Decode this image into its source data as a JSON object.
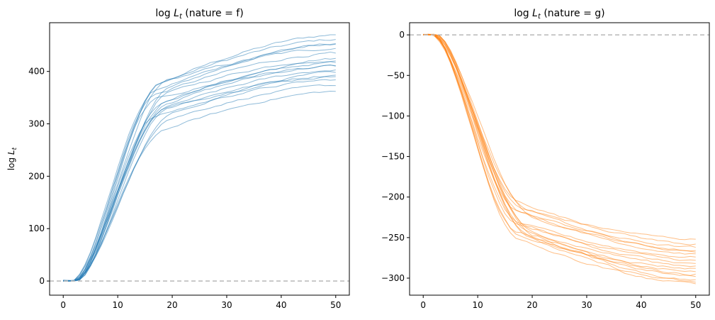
{
  "chart_data": [
    {
      "type": "line",
      "title_prefix": "log",
      "title_var": "L",
      "title_sub": "t",
      "title_suffix": " (nature = f)",
      "xlabel": "",
      "ylabel_prefix": "log",
      "ylabel_var": "L",
      "ylabel_sub": "t",
      "xlim": [
        -2.5,
        52.5
      ],
      "ylim": [
        -27,
        493
      ],
      "xticks": [
        0,
        10,
        20,
        30,
        40,
        50
      ],
      "xtick_labels": [
        "0",
        "10",
        "20",
        "30",
        "40",
        "50"
      ],
      "yticks": [
        0,
        100,
        200,
        300,
        400
      ],
      "ytick_labels": [
        "0",
        "100",
        "200",
        "300",
        "400"
      ],
      "reference_line_y": 0,
      "color": "#1f77b4",
      "series_finals": [
        470,
        461,
        453,
        452,
        444,
        435,
        425,
        420,
        417,
        411,
        410,
        403,
        398,
        393,
        390,
        384,
        373,
        362
      ],
      "grid": false,
      "legend": "none"
    },
    {
      "type": "line",
      "title_prefix": "log",
      "title_var": "L",
      "title_sub": "t",
      "title_suffix": " (nature = g)",
      "xlabel": "",
      "ylabel_prefix": "",
      "ylabel_var": "",
      "ylabel_sub": "",
      "xlim": [
        -2.5,
        52.5
      ],
      "ylim": [
        -321,
        15
      ],
      "xticks": [
        0,
        10,
        20,
        30,
        40,
        50
      ],
      "xtick_labels": [
        "0",
        "10",
        "20",
        "30",
        "40",
        "50"
      ],
      "yticks": [
        0,
        -50,
        -100,
        -150,
        -200,
        -250,
        -300
      ],
      "ytick_labels": [
        "0",
        "−50",
        "−100",
        "−150",
        "−200",
        "−250",
        "−300"
      ],
      "reference_line_y": 0,
      "color": "#ff7f0e",
      "series_finals": [
        -252,
        -258,
        -262,
        -266,
        -268,
        -270,
        -274,
        -278,
        -282,
        -285,
        -288,
        -292,
        -295,
        -298,
        -302,
        -305,
        -307
      ],
      "grid": false,
      "legend": "none"
    }
  ]
}
